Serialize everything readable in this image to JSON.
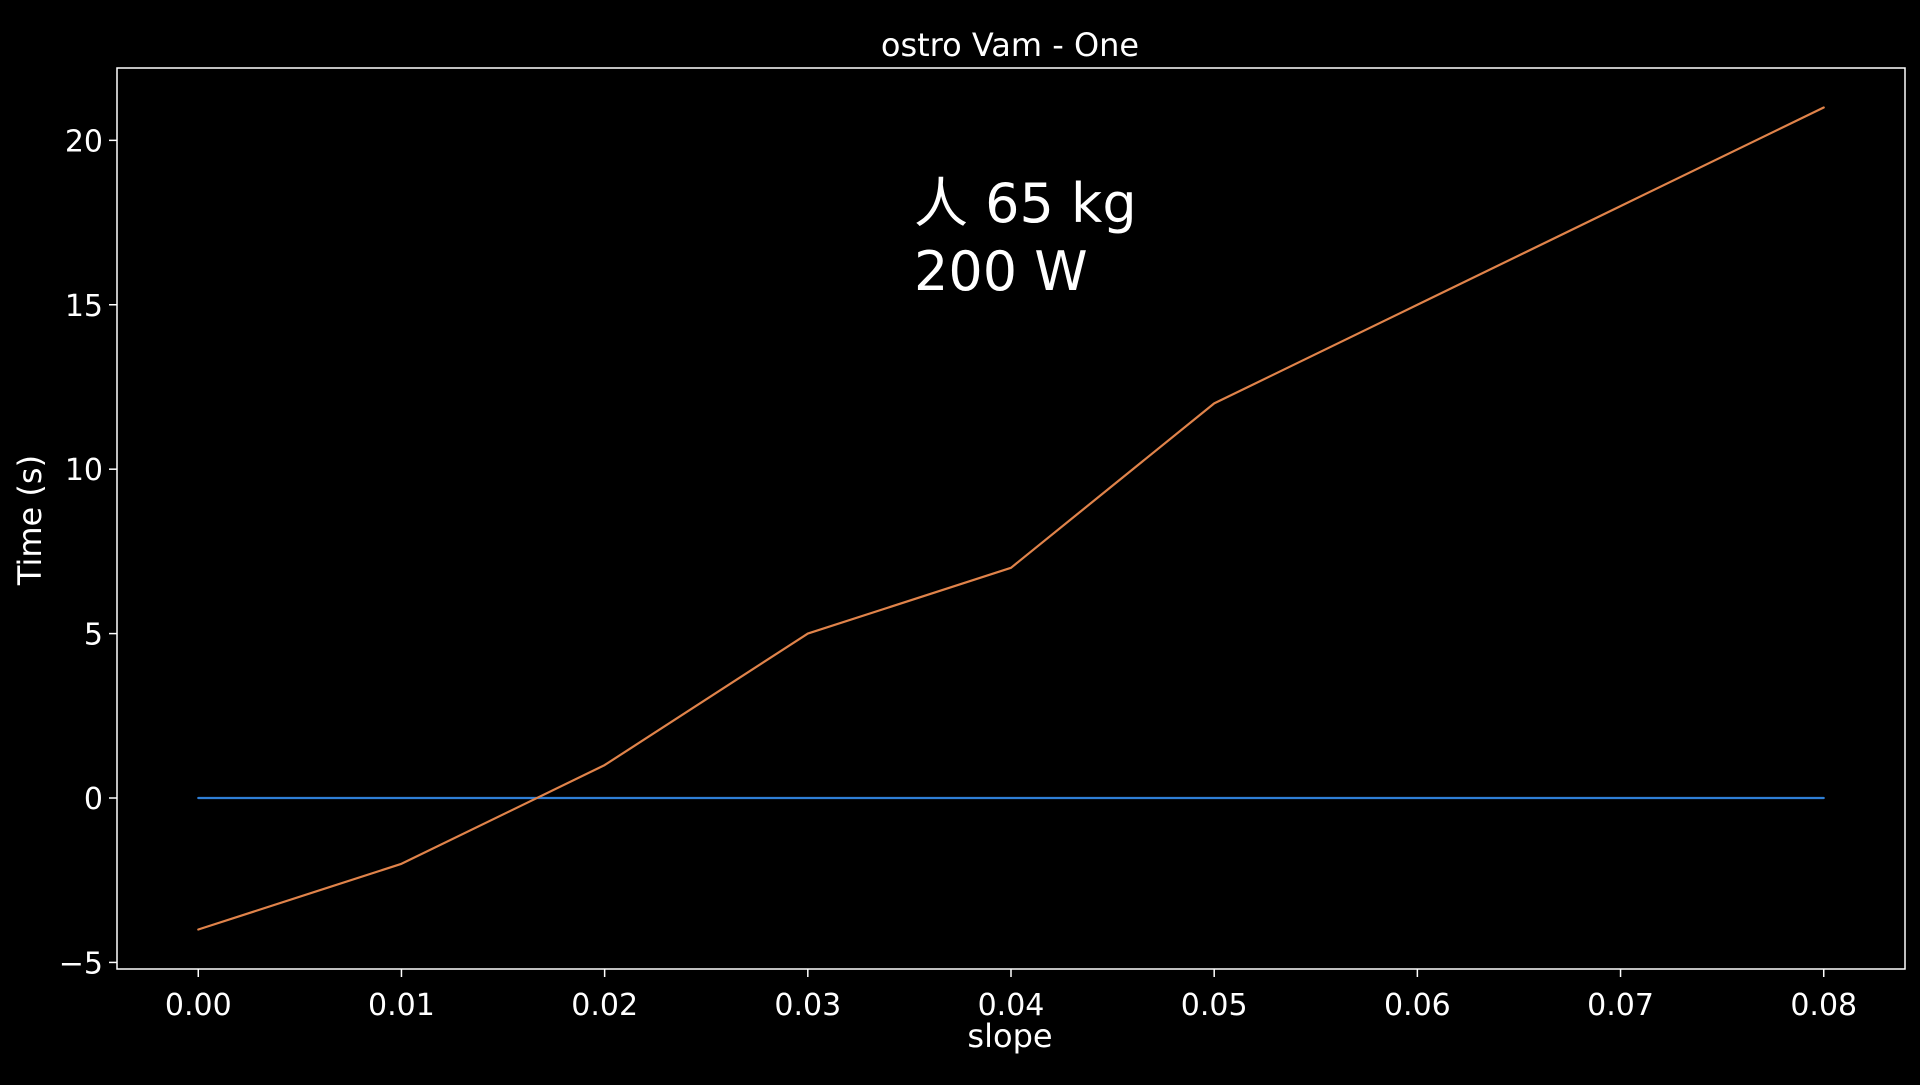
{
  "chart_data": {
    "type": "line",
    "title": "ostro Vam - One",
    "xlabel": "slope",
    "ylabel": "Time (s)",
    "xlim": [
      -0.004,
      0.084
    ],
    "ylim": [
      -5.2,
      22.2
    ],
    "xticks": [
      0.0,
      0.01,
      0.02,
      0.03,
      0.04,
      0.05,
      0.06,
      0.07,
      0.08
    ],
    "xtick_labels": [
      "0.00",
      "0.01",
      "0.02",
      "0.03",
      "0.04",
      "0.05",
      "0.06",
      "0.07",
      "0.08"
    ],
    "yticks": [
      -5,
      0,
      5,
      10,
      15,
      20
    ],
    "ytick_labels": [
      "−5",
      "0",
      "5",
      "10",
      "15",
      "20"
    ],
    "grid": false,
    "annotation": {
      "line1": "人 65 kg",
      "line2": "200 W"
    },
    "series": [
      {
        "color": "#2f7fd6",
        "x": [
          0.0,
          0.01,
          0.02,
          0.03,
          0.04,
          0.05,
          0.06,
          0.07,
          0.08
        ],
        "y": [
          0,
          0,
          0,
          0,
          0,
          0,
          0,
          0,
          0
        ]
      },
      {
        "color": "#e0834a",
        "x": [
          0.0,
          0.01,
          0.02,
          0.03,
          0.04,
          0.05,
          0.06,
          0.07,
          0.08
        ],
        "y": [
          -4,
          -2,
          1,
          5,
          7,
          12,
          15,
          18,
          21
        ]
      }
    ]
  }
}
